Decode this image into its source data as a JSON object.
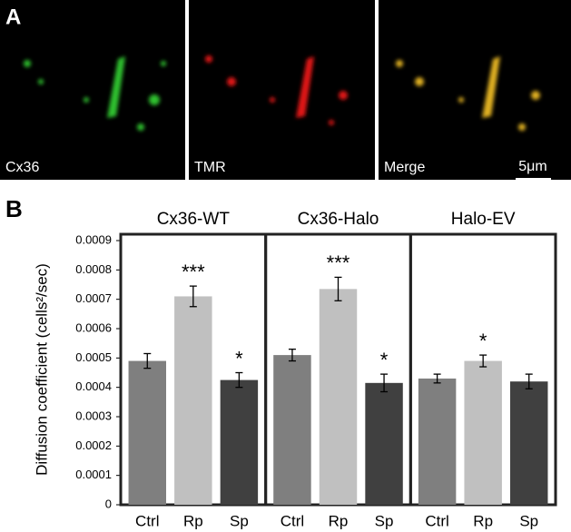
{
  "panels": {
    "a": {
      "label": "A",
      "images": [
        {
          "label": "Cx36"
        },
        {
          "label": "TMR"
        },
        {
          "label": "Merge"
        }
      ],
      "scale_bar": "5μm"
    },
    "b": {
      "label": "B"
    }
  },
  "chart_data": {
    "type": "bar",
    "y_label": "Diffusion coefficient (cells²/sec)",
    "ylim": [
      0,
      0.0009
    ],
    "yticks": [
      0,
      0.0001,
      0.0002,
      0.0003,
      0.0004,
      0.0005,
      0.0006,
      0.0007,
      0.0008,
      0.0009
    ],
    "colors": [
      "#7f7f7f",
      "#c0c0c0",
      "#404040"
    ],
    "groups": [
      {
        "name": "Cx36-WT",
        "categories": [
          "Ctrl",
          "Rp",
          "Sp"
        ],
        "values": [
          0.00049,
          0.00071,
          0.000425
        ],
        "errors": [
          2.5e-05,
          3.5e-05,
          2.5e-05
        ],
        "annotations": [
          null,
          "***",
          "*"
        ]
      },
      {
        "name": "Cx36-Halo",
        "categories": [
          "Ctrl",
          "Rp",
          "Sp"
        ],
        "values": [
          0.00051,
          0.000735,
          0.000415
        ],
        "errors": [
          2e-05,
          4e-05,
          3e-05
        ],
        "annotations": [
          null,
          "***",
          "*"
        ]
      },
      {
        "name": "Halo-EV",
        "categories": [
          "Ctrl",
          "Rp",
          "Sp"
        ],
        "values": [
          0.00043,
          0.00049,
          0.00042
        ],
        "errors": [
          1.5e-05,
          2e-05,
          2.5e-05
        ],
        "annotations": [
          null,
          "*",
          null
        ]
      }
    ]
  }
}
